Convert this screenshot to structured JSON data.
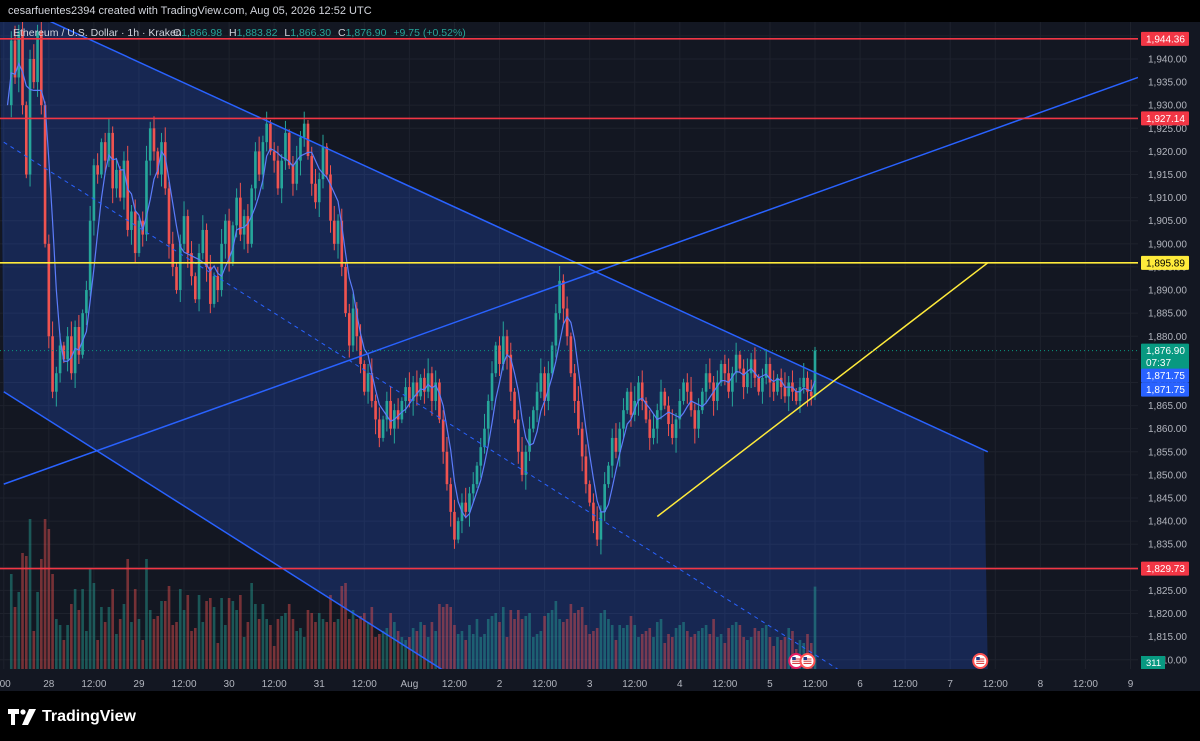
{
  "header": {
    "credit": "cesarfuentes2394 created with TradingView.com, Aug 05, 2026 12:52 UTC"
  },
  "legend": {
    "symbol": "Ethereum / U.S. Dollar · 1h · Kraken",
    "o_label": "O",
    "o_value": "1,866.98",
    "h_label": "H",
    "h_value": "1,883.82",
    "l_label": "L",
    "l_value": "1,866.30",
    "c_label": "C",
    "c_value": "1,876.90",
    "change": "+9.75 (+0.52%)"
  },
  "footer": {
    "brand": "TradingView"
  },
  "colors": {
    "up": "#26a69a",
    "down": "#ef5350",
    "level_red": "#f23645",
    "level_yellow": "#ffeb3b",
    "channel": "#2962ff",
    "price_badge": "#089981"
  },
  "chart_data": {
    "type": "candlestick",
    "symbol": "ETH/USD",
    "interval": "1h",
    "exchange": "Kraken",
    "ylim": [
      1808,
      1948
    ],
    "y_ticks": [
      1810,
      1815,
      1820,
      1825,
      1830,
      1835,
      1840,
      1845,
      1850,
      1855,
      1860,
      1865,
      1870,
      1875,
      1880,
      1885,
      1890,
      1895,
      1900,
      1905,
      1910,
      1915,
      1920,
      1925,
      1930,
      1935,
      1940,
      1945
    ],
    "x_ticks": [
      {
        "label": ":00",
        "hour": -12
      },
      {
        "label": "28",
        "hour": 0
      },
      {
        "label": "12:00",
        "hour": 12
      },
      {
        "label": "29",
        "hour": 24
      },
      {
        "label": "12:00",
        "hour": 36
      },
      {
        "label": "30",
        "hour": 48
      },
      {
        "label": "12:00",
        "hour": 60
      },
      {
        "label": "31",
        "hour": 72
      },
      {
        "label": "12:00",
        "hour": 84
      },
      {
        "label": "Aug",
        "hour": 96
      },
      {
        "label": "12:00",
        "hour": 108
      },
      {
        "label": "2",
        "hour": 120
      },
      {
        "label": "12:00",
        "hour": 132
      },
      {
        "label": "3",
        "hour": 144
      },
      {
        "label": "12:00",
        "hour": 156
      },
      {
        "label": "4",
        "hour": 168
      },
      {
        "label": "12:00",
        "hour": 180
      },
      {
        "label": "5",
        "hour": 192
      },
      {
        "label": "12:00",
        "hour": 204
      },
      {
        "label": "6",
        "hour": 216
      },
      {
        "label": "12:00",
        "hour": 228
      },
      {
        "label": "7",
        "hour": 240
      },
      {
        "label": "12:00",
        "hour": 252
      },
      {
        "label": "8",
        "hour": 264
      },
      {
        "label": "12:00",
        "hour": 276
      },
      {
        "label": "9",
        "hour": 288
      }
    ],
    "x_range": [
      -13,
      290
    ],
    "last_hour": 204,
    "price_path": [
      [
        -11,
        1930
      ],
      [
        -10,
        1944
      ],
      [
        -9,
        1936
      ],
      [
        -8,
        1946
      ],
      [
        -7,
        1930
      ],
      [
        -6,
        1915
      ],
      [
        -5,
        1940
      ],
      [
        -4,
        1935
      ],
      [
        -3,
        1946
      ],
      [
        -2,
        1930
      ],
      [
        -1,
        1900
      ],
      [
        0,
        1880
      ],
      [
        1,
        1868
      ],
      [
        2,
        1872
      ],
      [
        3,
        1878
      ],
      [
        4,
        1875
      ],
      [
        5,
        1880
      ],
      [
        6,
        1872
      ],
      [
        7,
        1882
      ],
      [
        8,
        1876
      ],
      [
        9,
        1885
      ],
      [
        10,
        1890
      ],
      [
        11,
        1905
      ],
      [
        12,
        1917
      ],
      [
        13,
        1915
      ],
      [
        14,
        1922
      ],
      [
        15,
        1918
      ],
      [
        16,
        1924
      ],
      [
        17,
        1912
      ],
      [
        18,
        1916
      ],
      [
        19,
        1910
      ],
      [
        20,
        1918
      ],
      [
        21,
        1903
      ],
      [
        22,
        1907
      ],
      [
        23,
        1898
      ],
      [
        24,
        1905
      ],
      [
        25,
        1902
      ],
      [
        26,
        1918
      ],
      [
        27,
        1925
      ],
      [
        28,
        1920
      ],
      [
        29,
        1915
      ],
      [
        30,
        1922
      ],
      [
        31,
        1912
      ],
      [
        32,
        1900
      ],
      [
        33,
        1895
      ],
      [
        34,
        1890
      ],
      [
        35,
        1900
      ],
      [
        36,
        1906
      ],
      [
        37,
        1898
      ],
      [
        38,
        1893
      ],
      [
        39,
        1888
      ],
      [
        40,
        1898
      ],
      [
        41,
        1903
      ],
      [
        42,
        1895
      ],
      [
        43,
        1887
      ],
      [
        44,
        1893
      ],
      [
        45,
        1890
      ],
      [
        46,
        1900
      ],
      [
        47,
        1905
      ],
      [
        48,
        1896
      ],
      [
        49,
        1904
      ],
      [
        50,
        1910
      ],
      [
        51,
        1902
      ],
      [
        52,
        1906
      ],
      [
        53,
        1900
      ],
      [
        54,
        1912
      ],
      [
        55,
        1920
      ],
      [
        56,
        1915
      ],
      [
        57,
        1922
      ],
      [
        58,
        1926
      ],
      [
        59,
        1920
      ],
      [
        60,
        1918
      ],
      [
        61,
        1912
      ],
      [
        62,
        1918
      ],
      [
        63,
        1924
      ],
      [
        64,
        1917
      ],
      [
        65,
        1913
      ],
      [
        66,
        1918
      ],
      [
        67,
        1923
      ],
      [
        68,
        1926
      ],
      [
        69,
        1919
      ],
      [
        70,
        1913
      ],
      [
        71,
        1909
      ],
      [
        72,
        1914
      ],
      [
        73,
        1921
      ],
      [
        74,
        1915
      ],
      [
        75,
        1905
      ],
      [
        76,
        1900
      ],
      [
        77,
        1905
      ],
      [
        78,
        1895
      ],
      [
        79,
        1885
      ],
      [
        80,
        1878
      ],
      [
        81,
        1886
      ],
      [
        82,
        1880
      ],
      [
        83,
        1874
      ],
      [
        84,
        1868
      ],
      [
        85,
        1872
      ],
      [
        86,
        1866
      ],
      [
        87,
        1862
      ],
      [
        88,
        1858
      ],
      [
        89,
        1862
      ],
      [
        90,
        1866
      ],
      [
        91,
        1860
      ],
      [
        92,
        1864
      ],
      [
        93,
        1862
      ],
      [
        94,
        1866
      ],
      [
        95,
        1869
      ],
      [
        96,
        1866
      ],
      [
        97,
        1870
      ],
      [
        98,
        1867
      ],
      [
        99,
        1871
      ],
      [
        100,
        1868
      ],
      [
        101,
        1872
      ],
      [
        102,
        1866
      ],
      [
        103,
        1870
      ],
      [
        104,
        1862
      ],
      [
        105,
        1855
      ],
      [
        106,
        1848
      ],
      [
        107,
        1842
      ],
      [
        108,
        1836
      ],
      [
        109,
        1840
      ],
      [
        110,
        1844
      ],
      [
        111,
        1842
      ],
      [
        112,
        1846
      ],
      [
        113,
        1848
      ],
      [
        114,
        1852
      ],
      [
        115,
        1856
      ],
      [
        116,
        1860
      ],
      [
        117,
        1866
      ],
      [
        118,
        1872
      ],
      [
        119,
        1878
      ],
      [
        120,
        1874
      ],
      [
        121,
        1880
      ],
      [
        122,
        1876
      ],
      [
        123,
        1868
      ],
      [
        124,
        1862
      ],
      [
        125,
        1855
      ],
      [
        126,
        1850
      ],
      [
        127,
        1855
      ],
      [
        128,
        1860
      ],
      [
        129,
        1864
      ],
      [
        130,
        1868
      ],
      [
        131,
        1872
      ],
      [
        132,
        1866
      ],
      [
        133,
        1872
      ],
      [
        134,
        1878
      ],
      [
        135,
        1885
      ],
      [
        136,
        1892
      ],
      [
        137,
        1886
      ],
      [
        138,
        1880
      ],
      [
        139,
        1872
      ],
      [
        140,
        1866
      ],
      [
        141,
        1860
      ],
      [
        142,
        1854
      ],
      [
        143,
        1848
      ],
      [
        144,
        1844
      ],
      [
        145,
        1840
      ],
      [
        146,
        1836
      ],
      [
        147,
        1842
      ],
      [
        148,
        1848
      ],
      [
        149,
        1852
      ],
      [
        150,
        1858
      ],
      [
        151,
        1855
      ],
      [
        152,
        1860
      ],
      [
        153,
        1864
      ],
      [
        154,
        1868
      ],
      [
        155,
        1863
      ],
      [
        156,
        1866
      ],
      [
        157,
        1870
      ],
      [
        158,
        1866
      ],
      [
        159,
        1862
      ],
      [
        160,
        1858
      ],
      [
        161,
        1860
      ],
      [
        162,
        1864
      ],
      [
        163,
        1868
      ],
      [
        164,
        1865
      ],
      [
        165,
        1861
      ],
      [
        166,
        1858
      ],
      [
        167,
        1862
      ],
      [
        168,
        1866
      ],
      [
        169,
        1870
      ],
      [
        170,
        1868
      ],
      [
        171,
        1864
      ],
      [
        172,
        1860
      ],
      [
        173,
        1864
      ],
      [
        174,
        1868
      ],
      [
        175,
        1872
      ],
      [
        176,
        1870
      ],
      [
        177,
        1866
      ],
      [
        178,
        1870
      ],
      [
        179,
        1874
      ],
      [
        180,
        1872
      ],
      [
        181,
        1868
      ],
      [
        182,
        1872
      ],
      [
        183,
        1876
      ],
      [
        184,
        1873
      ],
      [
        185,
        1869
      ],
      [
        186,
        1872
      ],
      [
        187,
        1875
      ],
      [
        188,
        1871
      ],
      [
        189,
        1868
      ],
      [
        190,
        1871
      ],
      [
        191,
        1874
      ],
      [
        192,
        1870
      ],
      [
        193,
        1868
      ],
      [
        194,
        1871
      ],
      [
        195,
        1869
      ],
      [
        196,
        1867
      ],
      [
        197,
        1870
      ],
      [
        198,
        1868
      ],
      [
        199,
        1866
      ],
      [
        200,
        1869
      ],
      [
        201,
        1871
      ],
      [
        202,
        1868
      ],
      [
        203,
        1867
      ],
      [
        204,
        1876.9
      ]
    ],
    "levels": [
      {
        "value": 1944.36,
        "label": "1,944.36",
        "color": "#f23645"
      },
      {
        "value": 1927.14,
        "label": "1,927.14",
        "color": "#f23645"
      },
      {
        "value": 1895.89,
        "label": "1,895.89",
        "color": "#ffeb3b"
      },
      {
        "value": 1829.73,
        "label": "1,829.73",
        "color": "#f23645"
      }
    ],
    "price_badge": {
      "value": 1876.9,
      "label": "1,876.90",
      "countdown": "07:37"
    },
    "ma_badges": [
      {
        "value": 1871.75,
        "label": "1,871.75"
      },
      {
        "value": 1871.75,
        "label": "1,871.75"
      }
    ],
    "volume_badge": "311",
    "trendlines": [
      {
        "name": "channel-upper",
        "from": [
          -10,
          1952
        ],
        "to": [
          250,
          1855
        ],
        "color": "#2962ff"
      },
      {
        "name": "channel-lower",
        "from": [
          -12,
          1868
        ],
        "to": [
          120,
          1800
        ],
        "color": "#2962ff"
      },
      {
        "name": "channel-mid-dashed",
        "from": [
          -12,
          1922
        ],
        "to": [
          210,
          1808
        ],
        "color": "#2962ff",
        "dashed": true
      },
      {
        "name": "rising-line",
        "from": [
          -12,
          1848
        ],
        "to": [
          290,
          1936
        ],
        "color": "#2962ff"
      },
      {
        "name": "support-line",
        "from": [
          162,
          1841
        ],
        "to": [
          250,
          1895.89
        ],
        "color": "#ffeb3b"
      }
    ]
  }
}
